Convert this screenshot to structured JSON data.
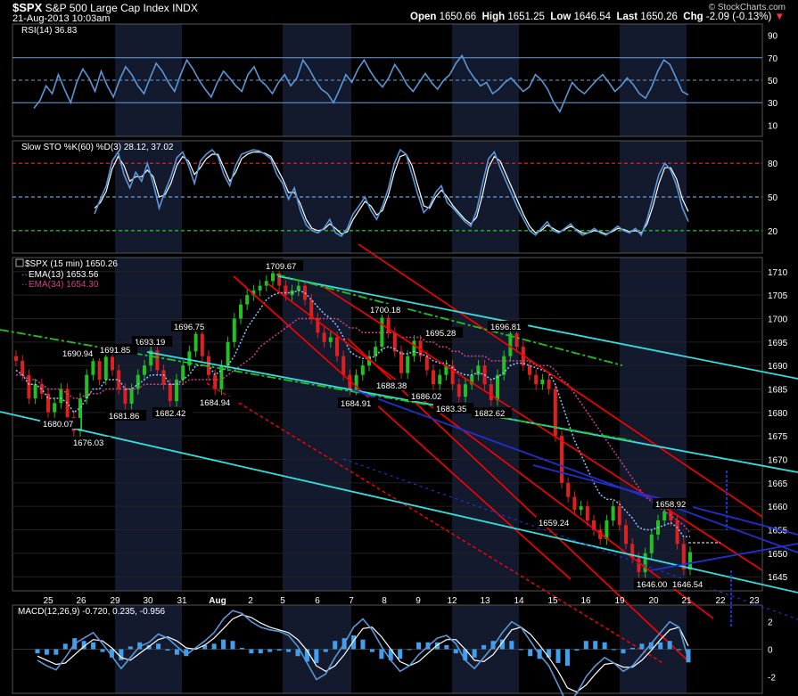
{
  "header": {
    "symbol": "$SPX",
    "name": "S&P 500 Large Cap Index",
    "exchange": "INDX",
    "date": "21-Aug-2013 10:03am",
    "copyright": "© StockCharts.com",
    "open_label": "Open",
    "open": "1650.66",
    "high_label": "High",
    "high": "1651.25",
    "low_label": "Low",
    "low": "1646.54",
    "last_label": "Last",
    "last": "1650.26",
    "chg_label": "Chg",
    "chg": "-2.09 (-0.13%)",
    "chg_arrow": "▼"
  },
  "colors": {
    "background": "#000000",
    "panel_border": "#555555",
    "shade": "#141a2e",
    "rsi_line": "#5a96d6",
    "price_up": "#22c022",
    "price_down": "#e02020",
    "ema13": "#8fc0ff",
    "ema34": "#d0408a",
    "red_trend": "#ff0000",
    "cyan_trend": "#33e0e0",
    "green_trend": "#22c022",
    "blue_trend": "#2030d0",
    "macd_hist": "#3fa0f0"
  },
  "chart_data": [
    {
      "type": "line",
      "panel": "rsi",
      "legend": "RSI(14) 36.83",
      "ylim": [
        0,
        100
      ],
      "y_ticks": [
        10,
        30,
        50,
        70,
        90
      ],
      "reference_levels": [
        30,
        50,
        70
      ],
      "series": [
        {
          "name": "RSI(14)",
          "values": [
            25,
            32,
            45,
            38,
            55,
            42,
            30,
            48,
            60,
            52,
            40,
            58,
            45,
            35,
            50,
            62,
            55,
            45,
            38,
            52,
            65,
            58,
            48,
            40,
            55,
            68,
            60,
            50,
            42,
            35,
            48,
            58,
            52,
            45,
            40,
            55,
            62,
            50,
            45,
            38,
            48,
            55,
            45,
            52,
            68,
            60,
            50,
            42,
            38,
            30,
            42,
            55,
            48,
            60,
            68,
            58,
            50,
            44,
            52,
            64,
            56,
            46,
            40,
            48,
            56,
            48,
            42,
            50,
            55,
            65,
            72,
            60,
            52,
            45,
            48,
            38,
            42,
            48,
            52,
            46,
            40,
            44,
            55,
            50,
            42,
            30,
            22,
            35,
            48,
            42,
            38,
            44,
            50,
            55,
            48,
            40,
            45,
            52,
            46,
            38,
            34,
            44,
            58,
            68,
            64,
            52,
            40,
            36.83
          ]
        }
      ]
    },
    {
      "type": "line",
      "panel": "slow_stochastic",
      "legend": "Slow STO %K(60) %D(3) 28.12, 37.02",
      "ylim": [
        0,
        100
      ],
      "y_ticks": [
        20,
        50,
        80
      ],
      "reference_levels": [
        {
          "value": 80,
          "color": "#ff2020"
        },
        {
          "value": 50,
          "color": "#6a9fd8"
        },
        {
          "value": 20,
          "color": "#20e020"
        }
      ],
      "series": [
        {
          "name": "%K",
          "values": [
            35,
            48,
            60,
            82,
            90,
            70,
            58,
            72,
            64,
            80,
            62,
            40,
            55,
            68,
            85,
            90,
            78,
            62,
            82,
            88,
            92,
            86,
            70,
            60,
            78,
            88,
            90,
            92,
            91,
            88,
            84,
            70,
            62,
            48,
            58,
            38,
            25,
            20,
            18,
            22,
            30,
            18,
            15,
            22,
            35,
            42,
            50,
            38,
            30,
            42,
            58,
            80,
            92,
            88,
            70,
            52,
            36,
            42,
            54,
            60,
            45,
            40,
            34,
            28,
            24,
            38,
            62,
            84,
            90,
            76,
            64,
            52,
            40,
            30,
            20,
            16,
            22,
            28,
            20,
            18,
            22,
            26,
            20,
            16,
            18,
            22,
            18,
            16,
            20,
            24,
            20,
            18,
            22,
            16,
            30,
            50,
            70,
            80,
            74,
            60,
            40,
            28.12
          ]
        },
        {
          "name": "%D",
          "values": [
            40,
            45,
            55,
            75,
            86,
            78,
            64,
            68,
            68,
            74,
            68,
            50,
            52,
            62,
            78,
            86,
            82,
            70,
            76,
            84,
            88,
            88,
            76,
            64,
            72,
            84,
            88,
            90,
            90,
            89,
            86,
            76,
            66,
            54,
            54,
            44,
            30,
            22,
            20,
            21,
            26,
            22,
            17,
            19,
            30,
            38,
            46,
            42,
            34,
            38,
            52,
            72,
            86,
            88,
            78,
            60,
            42,
            40,
            50,
            56,
            50,
            42,
            36,
            30,
            26,
            32,
            52,
            76,
            86,
            82,
            70,
            58,
            46,
            34,
            24,
            18,
            20,
            25,
            22,
            19,
            21,
            24,
            21,
            18,
            18,
            20,
            19,
            17,
            19,
            22,
            21,
            19,
            20,
            18,
            26,
            42,
            62,
            76,
            76,
            66,
            48,
            37.02
          ]
        }
      ]
    },
    {
      "type": "line",
      "panel": "price",
      "legend": "$SPX (15 min) 1650.26",
      "legend_ema13": "EMA(13) 1653.56",
      "legend_ema34": "EMA(34) 1654.30",
      "ylim": [
        1642,
        1713
      ],
      "y_ticks": [
        1645,
        1650,
        1655,
        1660,
        1665,
        1670,
        1675,
        1680,
        1685,
        1690,
        1695,
        1700,
        1705,
        1710
      ],
      "x_tick_labels": [
        "25",
        "26",
        "29",
        "30",
        "31",
        "Aug",
        "2",
        "5",
        "6",
        "7",
        "8",
        "9",
        "12",
        "13",
        "14",
        "15",
        "16",
        "19",
        "20",
        "21",
        "22",
        "23"
      ],
      "series": [
        {
          "name": "$SPX (15 min)",
          "values": [
            1691,
            1688,
            1683,
            1686,
            1684,
            1680.07,
            1682,
            1685,
            1679,
            1676.03,
            1683,
            1688,
            1690.94,
            1687,
            1691.85,
            1689,
            1685,
            1681.86,
            1685,
            1688,
            1690,
            1693.19,
            1689,
            1686,
            1682.42,
            1687,
            1690,
            1693,
            1696.75,
            1692,
            1688,
            1684.94,
            1690,
            1695,
            1700,
            1703,
            1705,
            1706,
            1707,
            1708,
            1709.67,
            1707,
            1705,
            1706,
            1707,
            1704,
            1700,
            1697,
            1695,
            1696,
            1692,
            1688,
            1684.91,
            1688,
            1690,
            1692,
            1694,
            1700.18,
            1697,
            1693,
            1688.38,
            1692,
            1695.28,
            1692,
            1689,
            1686.02,
            1688,
            1690,
            1686,
            1683.35,
            1686,
            1688,
            1690,
            1686,
            1682.62,
            1688,
            1692,
            1696.81,
            1694,
            1690,
            1688,
            1686,
            1687,
            1685,
            1675,
            1665,
            1662,
            1659.24,
            1660,
            1657,
            1655,
            1653,
            1657,
            1660,
            1656,
            1652,
            1649,
            1646.0,
            1650,
            1654,
            1657,
            1658.92,
            1657,
            1652,
            1646.54,
            1650.26
          ]
        },
        {
          "name": "EMA(13)",
          "values": [
            1689,
            1688,
            1686,
            1686,
            1685,
            1683,
            1683,
            1683,
            1682,
            1680,
            1681,
            1683,
            1685,
            1685,
            1687,
            1687,
            1687,
            1685,
            1685,
            1686,
            1687,
            1688,
            1688,
            1688,
            1686,
            1686,
            1687,
            1688,
            1690,
            1690,
            1690,
            1688,
            1689,
            1690,
            1692,
            1695,
            1698,
            1700,
            1702,
            1704,
            1705,
            1705.5,
            1705.5,
            1705.5,
            1706,
            1705.5,
            1704,
            1702.5,
            1701,
            1700,
            1698.5,
            1696,
            1693,
            1692,
            1691.5,
            1691.5,
            1692,
            1693.5,
            1694,
            1693.5,
            1692.5,
            1692.5,
            1693,
            1692.5,
            1692,
            1691,
            1690.5,
            1690.5,
            1689.5,
            1688.5,
            1688,
            1688,
            1688.5,
            1688,
            1687,
            1687.5,
            1688.5,
            1690,
            1690.5,
            1690.5,
            1690,
            1689.5,
            1689,
            1688.5,
            1686,
            1682,
            1678,
            1674,
            1671,
            1668,
            1665,
            1662.5,
            1661.5,
            1661.5,
            1660.5,
            1659,
            1657.5,
            1655.5,
            1655,
            1655,
            1655.5,
            1656,
            1656.5,
            1655.5,
            1653.5,
            1653.56
          ]
        },
        {
          "name": "EMA(34)",
          "values": [
            1688,
            1688,
            1687,
            1687,
            1686,
            1685,
            1685,
            1685,
            1684,
            1683,
            1683,
            1684,
            1684,
            1684,
            1685,
            1685,
            1685,
            1685,
            1685,
            1685,
            1686,
            1686,
            1686,
            1686,
            1686,
            1686,
            1686,
            1687,
            1687,
            1687,
            1687,
            1687,
            1687,
            1688,
            1689,
            1690,
            1691,
            1692,
            1694,
            1695,
            1696,
            1697,
            1698,
            1699,
            1700,
            1700,
            1700,
            1700,
            1700,
            1700,
            1700,
            1699,
            1698,
            1698,
            1697,
            1697,
            1697,
            1697,
            1697,
            1697,
            1696,
            1696,
            1696,
            1696,
            1695,
            1695,
            1694,
            1694,
            1693,
            1693,
            1692,
            1692,
            1692,
            1692,
            1691,
            1691,
            1691,
            1691,
            1691,
            1691,
            1691,
            1690,
            1690,
            1690,
            1689,
            1687,
            1686,
            1684,
            1682,
            1680,
            1678,
            1676,
            1674,
            1672,
            1670,
            1668,
            1666,
            1664,
            1662,
            1661,
            1660,
            1659,
            1658,
            1657,
            1656,
            1654.3
          ]
        }
      ],
      "annotations": [
        "1709.67",
        "1700.18",
        "1696.81",
        "1696.75",
        "1695.28",
        "1693.19",
        "1691.85",
        "1690.94",
        "1688.38",
        "1686.02",
        "1684.94",
        "1684.91",
        "1683.35",
        "1682.62",
        "1682.42",
        "1681.86",
        "1680.07",
        "1676.03",
        "1659.24",
        "1658.92",
        "1646.00",
        "1646.54"
      ]
    },
    {
      "type": "bar",
      "panel": "macd",
      "legend": "MACD(12,26,9) -0.720, 0.235, -0.956",
      "ylim": [
        -3.2,
        3.2
      ],
      "y_ticks": [
        -2,
        0,
        2
      ],
      "series": [
        {
          "name": "MACD",
          "values": [
            -0.8,
            -1.2,
            -1.5,
            -0.6,
            0.4,
            0.8,
            1.2,
            0.4,
            -0.5,
            -1.4,
            -0.6,
            0.2,
            0.5,
            1.1,
            0.8,
            0.2,
            -0.4,
            0.1,
            0.6,
            1.2,
            2.2,
            2.8,
            2.6,
            2.0,
            1.6,
            1.4,
            1.3,
            1.0,
            0.2,
            -1.0,
            -2.2,
            -1.8,
            -0.6,
            0.4,
            1.6,
            2.2,
            1.4,
            0.2,
            -0.8,
            -1.6,
            -1.2,
            -0.4,
            0.2,
            0.8,
            1.0,
            0.4,
            -0.8,
            -1.4,
            -0.6,
            0.2,
            1.2,
            2.0,
            1.6,
            0.6,
            -0.4,
            -1.2,
            -2.6,
            -4.0,
            -3.2,
            -2.0,
            -1.2,
            -0.6,
            -1.0,
            -1.6,
            -1.2,
            -0.4,
            0.4,
            1.2,
            2.0,
            1.6,
            -0.72
          ]
        },
        {
          "name": "Signal",
          "values": [
            -0.5,
            -0.8,
            -1.1,
            -1.0,
            -0.4,
            0.2,
            0.7,
            0.6,
            0.1,
            -0.6,
            -0.8,
            -0.3,
            0.2,
            0.7,
            0.9,
            0.6,
            0.1,
            0.0,
            0.3,
            0.8,
            1.5,
            2.2,
            2.5,
            2.3,
            1.9,
            1.6,
            1.4,
            1.2,
            0.7,
            -0.1,
            -1.2,
            -1.6,
            -1.2,
            -0.4,
            0.6,
            1.5,
            1.6,
            0.9,
            0.0,
            -0.9,
            -1.2,
            -0.9,
            -0.3,
            0.3,
            0.7,
            0.7,
            0.0,
            -0.8,
            -0.9,
            -0.4,
            0.5,
            1.4,
            1.6,
            1.1,
            0.3,
            -0.6,
            -1.6,
            -2.8,
            -3.1,
            -2.6,
            -1.8,
            -1.1,
            -1.0,
            -1.3,
            -1.3,
            -0.8,
            -0.1,
            0.7,
            1.4,
            1.6,
            0.235
          ]
        },
        {
          "name": "Histogram",
          "values": [
            -0.3,
            -0.4,
            -0.4,
            0.4,
            0.8,
            0.6,
            0.5,
            -0.2,
            -0.6,
            -0.8,
            0.2,
            0.5,
            0.3,
            0.4,
            -0.1,
            -0.4,
            -0.5,
            0.1,
            0.3,
            0.4,
            0.7,
            0.6,
            0.1,
            -0.3,
            -0.3,
            -0.2,
            -0.1,
            -0.2,
            -0.5,
            -0.9,
            -1.0,
            -0.2,
            0.6,
            0.8,
            1.0,
            0.7,
            -0.2,
            -0.7,
            -0.8,
            -0.7,
            0.0,
            0.5,
            0.5,
            0.5,
            0.3,
            -0.3,
            -0.8,
            -0.6,
            0.3,
            0.6,
            0.7,
            0.6,
            0.0,
            -0.5,
            -0.7,
            -0.6,
            -1.0,
            -1.2,
            -0.1,
            0.6,
            0.6,
            0.5,
            0.0,
            -0.3,
            0.1,
            0.4,
            0.5,
            0.5,
            0.6,
            0.0,
            -0.956
          ]
        }
      ]
    }
  ]
}
